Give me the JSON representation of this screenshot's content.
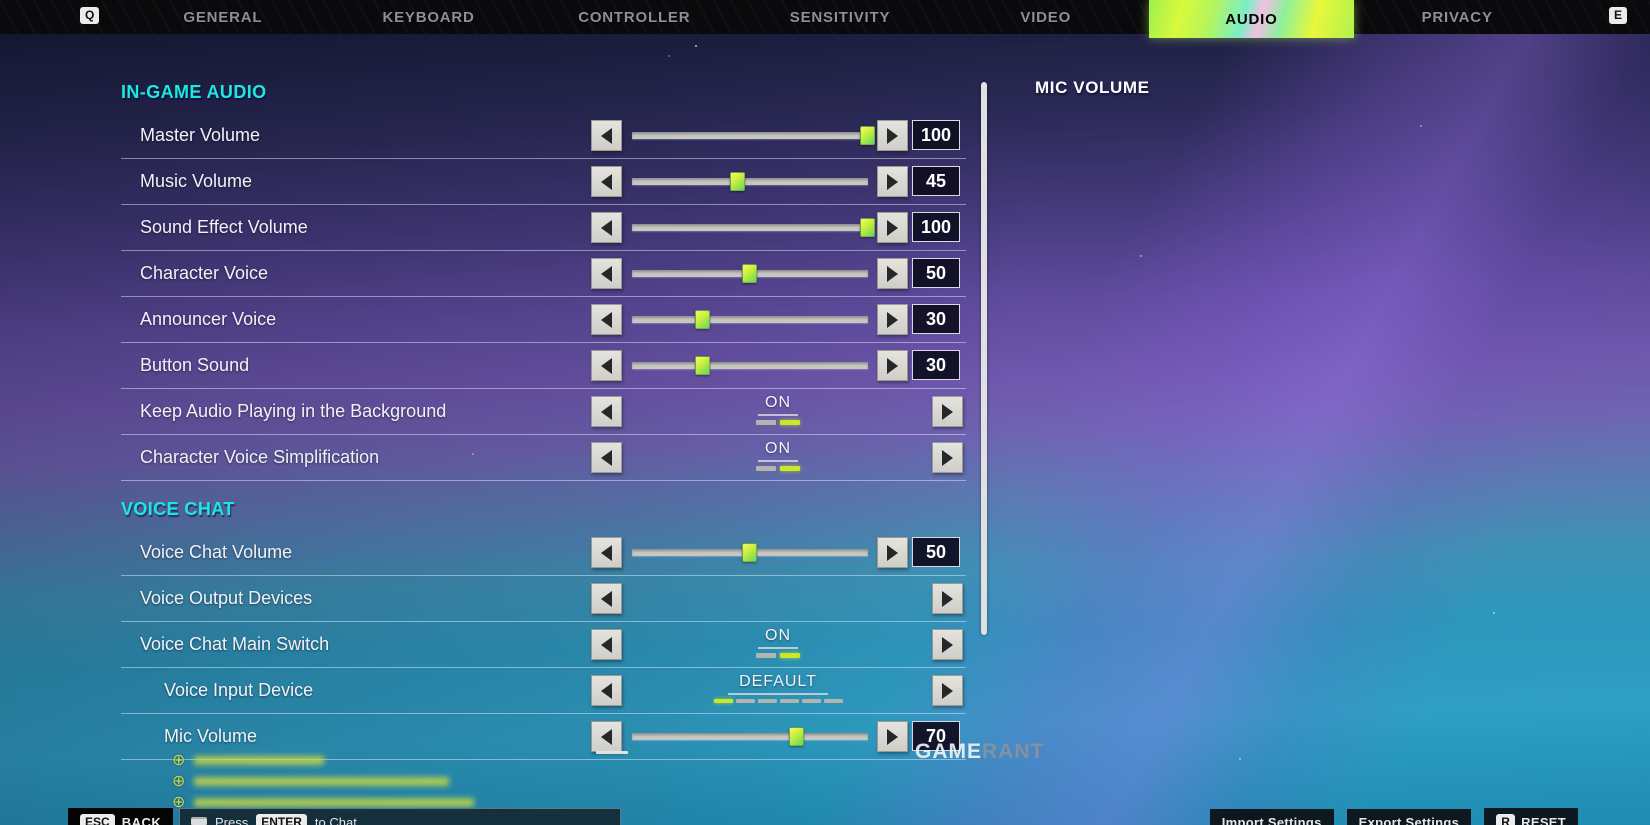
{
  "nav": {
    "left_hint_key": "Q",
    "right_hint_key": "E",
    "tabs": [
      {
        "label": "GENERAL",
        "active": false
      },
      {
        "label": "KEYBOARD",
        "active": false
      },
      {
        "label": "CONTROLLER",
        "active": false
      },
      {
        "label": "SENSITIVITY",
        "active": false
      },
      {
        "label": "VIDEO",
        "active": false
      },
      {
        "label": "AUDIO",
        "active": true
      },
      {
        "label": "PRIVACY",
        "active": false
      }
    ]
  },
  "sections": [
    {
      "title": "IN-GAME AUDIO",
      "rows": [
        {
          "label": "Master Volume",
          "type": "slider",
          "value": 100,
          "max": 100
        },
        {
          "label": "Music Volume",
          "type": "slider",
          "value": 45,
          "max": 100
        },
        {
          "label": "Sound Effect Volume",
          "type": "slider",
          "value": 100,
          "max": 100
        },
        {
          "label": "Character Voice",
          "type": "slider",
          "value": 50,
          "max": 100
        },
        {
          "label": "Announcer Voice",
          "type": "slider",
          "value": 30,
          "max": 100
        },
        {
          "label": "Button Sound",
          "type": "slider",
          "value": 30,
          "max": 100
        },
        {
          "label": "Keep Audio Playing in the Background",
          "type": "toggle",
          "value": "ON",
          "options_count": 2,
          "selected_index": 1
        },
        {
          "label": "Character Voice Simplification",
          "type": "toggle",
          "value": "ON",
          "options_count": 2,
          "selected_index": 1
        }
      ]
    },
    {
      "title": "VOICE CHAT",
      "rows": [
        {
          "label": "Voice Chat Volume",
          "type": "slider",
          "value": 50,
          "max": 100
        },
        {
          "label": "Voice Output Devices",
          "type": "nav"
        },
        {
          "label": "Voice Chat Main Switch",
          "type": "toggle",
          "value": "ON",
          "options_count": 2,
          "selected_index": 1
        },
        {
          "label": "Voice Input Device",
          "type": "selector",
          "value": "DEFAULT",
          "options_count": 6,
          "selected_index": 0,
          "indent": true
        },
        {
          "label": "Mic Volume",
          "type": "slider",
          "value": 70,
          "max": 100,
          "indent": true
        }
      ]
    }
  ],
  "right_panel": {
    "title": "MIC VOLUME"
  },
  "chat": {
    "censored_message_count": 3
  },
  "footer": {
    "back_key": "ESC",
    "back_label": "BACK",
    "chat_hint_prefix": "Press",
    "chat_hint_key": "ENTER",
    "chat_hint_suffix": "to Chat",
    "import_label": "Import Settings",
    "export_label": "Export Settings",
    "reset_key": "R",
    "reset_label": "RESET"
  },
  "watermark": {
    "text_primary": "GAME",
    "text_secondary": "RANT"
  },
  "colors": {
    "active_tab_gradient_base": "#c8f046",
    "section_header_cyan": "#1de8de",
    "slider_thumb_lime": "#b9ee42",
    "dash_selected_lime": "#cbe827",
    "value_text": "#ffffff",
    "inactive_tab_gray": "#8e9095"
  }
}
